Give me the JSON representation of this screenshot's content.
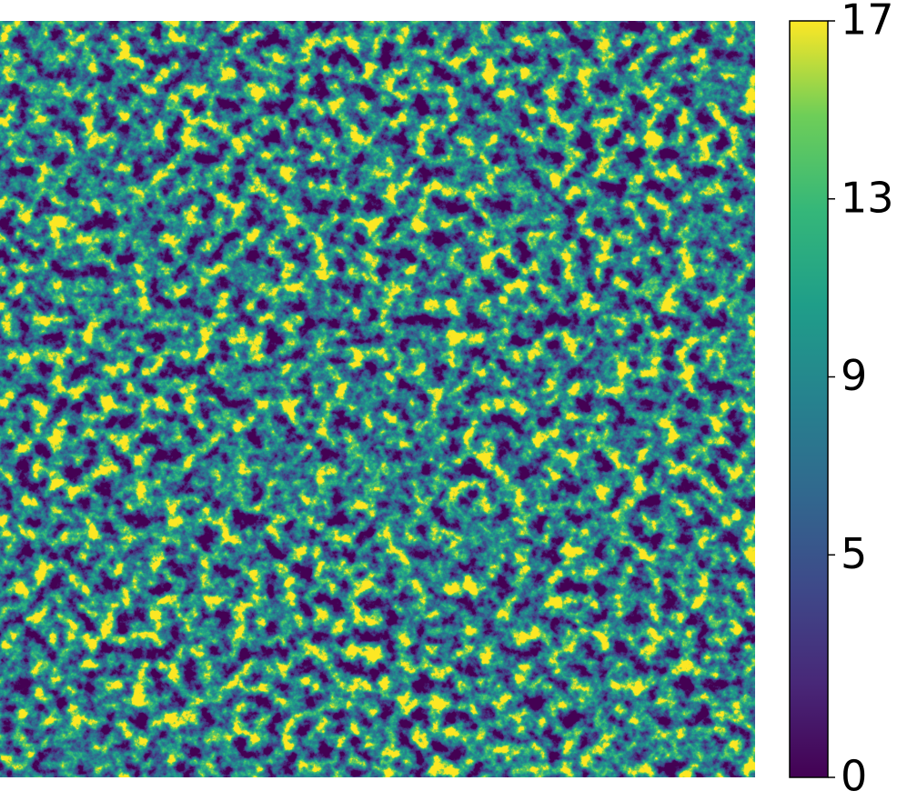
{
  "chart_data": {
    "type": "heatmap",
    "colormap": "viridis",
    "clim": [
      0,
      17
    ],
    "cticks": [
      0,
      5,
      9,
      13,
      17
    ]
  }
}
